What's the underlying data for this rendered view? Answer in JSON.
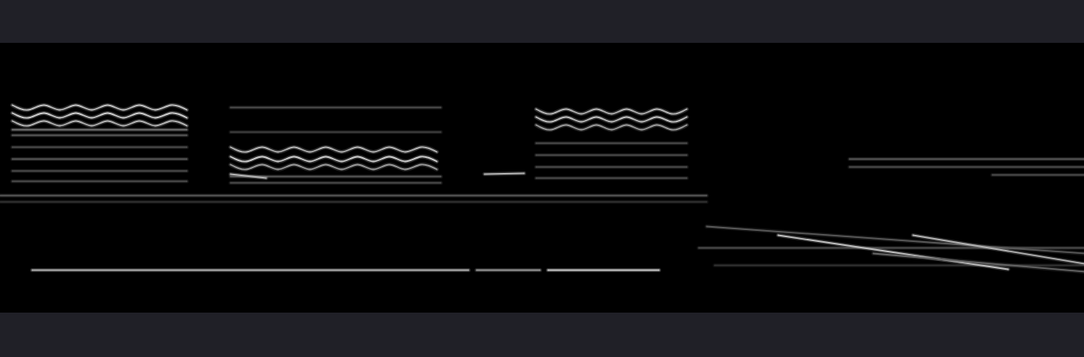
{
  "chart_data": {
    "type": "spectrogram",
    "tick_labels": false,
    "grid": false,
    "xlim": [
      0,
      1366
    ],
    "ylim": [
      0,
      340
    ],
    "zlim": [
      0,
      1
    ],
    "tracks": [
      {
        "x": [
          15,
          35,
          55,
          75,
          95,
          115,
          135,
          155,
          175,
          195,
          215,
          235
        ],
        "y": [
          262,
          256,
          262,
          256,
          262,
          256,
          262,
          256,
          262,
          256,
          262,
          256
        ],
        "value": 0.75
      },
      {
        "x": [
          15,
          35,
          55,
          75,
          95,
          115,
          135,
          155,
          175,
          195,
          215,
          235
        ],
        "y": [
          252,
          246,
          252,
          246,
          252,
          246,
          252,
          246,
          252,
          246,
          252,
          246
        ],
        "value": 0.8
      },
      {
        "x": [
          15,
          35,
          55,
          75,
          95,
          115,
          135,
          155,
          175,
          195,
          215,
          235
        ],
        "y": [
          242,
          236,
          242,
          236,
          242,
          236,
          242,
          236,
          242,
          236,
          242,
          236
        ],
        "value": 0.7
      },
      {
        "x": [
          15,
          235
        ],
        "y": [
          231,
          231
        ],
        "value": 0.45
      },
      {
        "x": [
          15,
          235
        ],
        "y": [
          224,
          224
        ],
        "value": 0.35
      },
      {
        "x": [
          15,
          235
        ],
        "y": [
          209,
          209
        ],
        "value": 0.3
      },
      {
        "x": [
          15,
          235
        ],
        "y": [
          194,
          194
        ],
        "value": 0.35
      },
      {
        "x": [
          15,
          235
        ],
        "y": [
          179,
          179
        ],
        "value": 0.3
      },
      {
        "x": [
          15,
          235
        ],
        "y": [
          166,
          166
        ],
        "value": 0.3
      },
      {
        "x": [
          290,
          310,
          330,
          350,
          370,
          390,
          410,
          430,
          450,
          470,
          490,
          510,
          530,
          550
        ],
        "y": [
          209,
          203,
          209,
          203,
          209,
          203,
          209,
          203,
          209,
          203,
          209,
          203,
          209,
          203
        ],
        "value": 0.7
      },
      {
        "x": [
          290,
          310,
          330,
          350,
          370,
          390,
          410,
          430,
          450,
          470,
          490,
          510,
          530,
          550
        ],
        "y": [
          197,
          191,
          197,
          191,
          197,
          191,
          197,
          191,
          197,
          191,
          197,
          191,
          197,
          191
        ],
        "value": 0.8
      },
      {
        "x": [
          290,
          310,
          330,
          350,
          370,
          390,
          410,
          430,
          450,
          470,
          490,
          510,
          530,
          550
        ],
        "y": [
          187,
          181,
          187,
          181,
          187,
          181,
          187,
          181,
          187,
          181,
          187,
          181,
          187,
          181
        ],
        "value": 0.6
      },
      {
        "x": [
          290,
          555
        ],
        "y": [
          259,
          259
        ],
        "value": 0.3
      },
      {
        "x": [
          290,
          555
        ],
        "y": [
          228,
          228
        ],
        "value": 0.25
      },
      {
        "x": [
          290,
          555
        ],
        "y": [
          172,
          172
        ],
        "value": 0.35
      },
      {
        "x": [
          290,
          555
        ],
        "y": [
          164,
          164
        ],
        "value": 0.3
      },
      {
        "x": [
          675,
          694,
          713,
          732,
          751,
          770,
          789,
          808,
          827,
          846,
          865
        ],
        "y": [
          257,
          251,
          257,
          251,
          257,
          251,
          257,
          251,
          257,
          251,
          257
        ],
        "value": 0.7
      },
      {
        "x": [
          675,
          694,
          713,
          732,
          751,
          770,
          789,
          808,
          827,
          846,
          865
        ],
        "y": [
          247,
          241,
          247,
          241,
          247,
          241,
          247,
          241,
          247,
          241,
          247
        ],
        "value": 0.75
      },
      {
        "x": [
          675,
          694,
          713,
          732,
          751,
          770,
          789,
          808,
          827,
          846,
          865
        ],
        "y": [
          237,
          231,
          237,
          231,
          237,
          231,
          237,
          231,
          237,
          231,
          237
        ],
        "value": 0.6
      },
      {
        "x": [
          675,
          865
        ],
        "y": [
          214,
          214
        ],
        "value": 0.3
      },
      {
        "x": [
          675,
          865
        ],
        "y": [
          199,
          199
        ],
        "value": 0.3
      },
      {
        "x": [
          675,
          865
        ],
        "y": [
          184,
          184
        ],
        "value": 0.3
      },
      {
        "x": [
          675,
          865
        ],
        "y": [
          170,
          170
        ],
        "value": 0.3
      },
      {
        "x": [
          290,
          335
        ],
        "y": [
          175,
          170
        ],
        "value": 0.7
      },
      {
        "x": [
          610,
          660
        ],
        "y": [
          175,
          176
        ],
        "value": 0.7
      },
      {
        "x": [
          0,
          890
        ],
        "y": [
          148,
          148
        ],
        "value": 0.35
      },
      {
        "x": [
          0,
          890
        ],
        "y": [
          140,
          140
        ],
        "value": 0.2
      },
      {
        "x": [
          40,
          590
        ],
        "y": [
          54,
          54
        ],
        "value": 0.7
      },
      {
        "x": [
          600,
          680
        ],
        "y": [
          54,
          54
        ],
        "value": 0.6
      },
      {
        "x": [
          690,
          830
        ],
        "y": [
          54,
          54
        ],
        "value": 0.8
      },
      {
        "x": [
          880,
          1366
        ],
        "y": [
          82,
          82
        ],
        "value": 0.3
      },
      {
        "x": [
          900,
          1366
        ],
        "y": [
          60,
          60
        ],
        "value": 0.2
      },
      {
        "x": [
          890,
          1366
        ],
        "y": [
          109,
          75
        ],
        "value": 0.35
      },
      {
        "x": [
          980,
          1270
        ],
        "y": [
          98,
          55
        ],
        "value": 0.75
      },
      {
        "x": [
          1150,
          1366
        ],
        "y": [
          98,
          62
        ],
        "value": 0.7
      },
      {
        "x": [
          1100,
          1366
        ],
        "y": [
          75,
          52
        ],
        "value": 0.4
      },
      {
        "x": [
          1070,
          1366
        ],
        "y": [
          194,
          194
        ],
        "value": 0.35
      },
      {
        "x": [
          1070,
          1366
        ],
        "y": [
          184,
          184
        ],
        "value": 0.3
      },
      {
        "x": [
          1250,
          1366
        ],
        "y": [
          174,
          174
        ],
        "value": 0.3
      }
    ]
  }
}
